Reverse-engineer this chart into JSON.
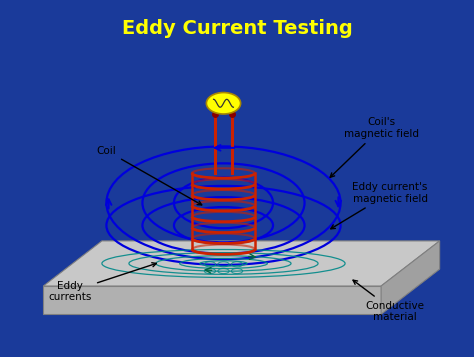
{
  "title": "Eddy Current Testing",
  "title_color": "#FFFF00",
  "title_bg_color": "#1a1aaa",
  "bg_color": "#1a3a9a",
  "diagram_bg": "#f5f5f5",
  "labels": {
    "coil": "Coil",
    "coils_field": "Coil's\nmagnetic field",
    "eddy_field": "Eddy current's\nmagnetic field",
    "eddy_currents": "Eddy\ncurrents",
    "conductive": "Conductive\nmaterial"
  },
  "coil_color": "#cc2200",
  "magnetic_field_color": "#0000dd",
  "eddy_current_color": "#008888",
  "wire_color": "#cc2200",
  "source_color": "#ffff00",
  "plate_top_color": "#c8c8c8",
  "plate_front_color": "#b0b0b0",
  "plate_side_color": "#a0a0a0",
  "plate_edge_color": "#808080",
  "label_color": "#000000",
  "title_fontsize": 14,
  "label_fontsize": 7.5
}
